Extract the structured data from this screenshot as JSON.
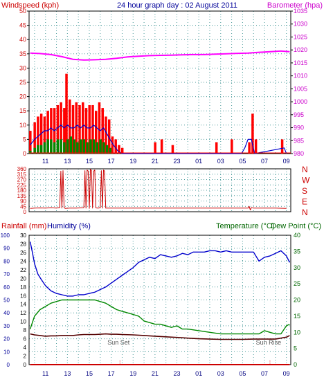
{
  "colors": {
    "background": "#ffffff",
    "plot_bg": "#ffffff",
    "axis": "#000000",
    "grid": "#4a9a9a",
    "wind_red": "#ff0000",
    "wind_blue": "#0000cc",
    "wind_green": "#008800",
    "barometer": "#ff00ff",
    "direction": "#cc0000",
    "humidity": "#0000cc",
    "temperature": "#008800",
    "dewpoint": "#550000",
    "rain": "#cc0000",
    "title_blue": "#000099",
    "humidity_label": "#000099",
    "temp_label": "#006600",
    "wind_label": "#cc0000",
    "baro_label": "#cc00cc",
    "rain_label": "#cc0000",
    "dir_label": "#cc0000"
  },
  "chart_data": [
    {
      "type": "line",
      "panel": "wind-barometer",
      "title": "24 hour graph day : 02 August 2011",
      "left_axis_label": "Windspeed (kph)",
      "right_axis_label": "Barometer (hpa)",
      "x_tick_labels": [
        "11",
        "13",
        "15",
        "17",
        "19",
        "21",
        "23",
        "01",
        "03",
        "05",
        "07",
        "09"
      ],
      "x_hours": [
        11,
        13,
        15,
        17,
        19,
        21,
        23,
        25,
        27,
        29,
        31,
        33
      ],
      "x_range_hours": [
        9.5,
        33.4
      ],
      "left_ticks": [
        0,
        5,
        10,
        15,
        20,
        25,
        30,
        35,
        40,
        45,
        50
      ],
      "left_range": [
        0,
        50
      ],
      "right_ticks": [
        980,
        985,
        990,
        995,
        1000,
        1005,
        1010,
        1015,
        1020,
        1025,
        1030,
        1035
      ],
      "right_range": [
        980,
        1035
      ],
      "grid": true,
      "series": [
        {
          "style": "gust",
          "x": [
            9.6,
            10.0,
            10.3,
            10.6,
            10.9,
            11.2,
            11.5,
            11.8,
            12.1,
            12.4,
            12.7,
            12.9,
            13.2,
            13.5,
            13.8,
            14.1,
            14.4,
            14.7,
            15.0,
            15.3,
            15.6,
            15.9,
            16.2,
            16.5,
            16.8,
            17.1,
            17.4,
            17.7,
            18.0,
            18.2,
            18.6,
            20.8,
            21.0,
            21.6,
            22.4,
            22.6,
            23.2,
            26.4,
            26.6,
            28.0,
            28.3,
            29.6,
            29.9,
            30.2,
            30.6,
            32.6,
            33.0
          ],
          "values": [
            8,
            11,
            13,
            14,
            13,
            15,
            16,
            16,
            17,
            18,
            16,
            28,
            19,
            17,
            18,
            17,
            18,
            16,
            17,
            17,
            15,
            18,
            16,
            13,
            12,
            6,
            5,
            3,
            2,
            0,
            0,
            0,
            4,
            5,
            0,
            3,
            0,
            0,
            4,
            5,
            0,
            4,
            14,
            5,
            0,
            5,
            0
          ]
        },
        {
          "style": "average",
          "x": [
            9.6,
            10.0,
            10.3,
            10.6,
            10.9,
            11.2,
            11.5,
            11.8,
            12.1,
            12.4,
            12.7,
            13.0,
            13.3,
            13.6,
            13.9,
            14.2,
            14.5,
            14.8,
            15.1,
            15.4,
            15.7,
            16.0,
            16.3,
            16.6,
            16.9,
            17.2,
            17.6,
            18.0,
            28.9,
            29.2,
            29.5,
            29.8,
            30.1,
            32.8,
            33.0
          ],
          "values": [
            3,
            5,
            6,
            7,
            8,
            8,
            9,
            8,
            9,
            10,
            9,
            10,
            9,
            9,
            10,
            9,
            10,
            9,
            9,
            10,
            9,
            8,
            9,
            7,
            5,
            3,
            1,
            0,
            0,
            2,
            5,
            5,
            0,
            2,
            0
          ]
        },
        {
          "style": "lull",
          "x": [
            9.6,
            10.0,
            10.3,
            10.6,
            10.9,
            11.2,
            11.5,
            11.8,
            12.1,
            12.4,
            12.7,
            13.0,
            13.3,
            13.6,
            13.9,
            14.2,
            14.5,
            14.8,
            15.1,
            15.4,
            15.7,
            16.0,
            16.3,
            16.6,
            16.9,
            17.2
          ],
          "values": [
            1,
            2,
            3,
            3,
            4,
            5,
            5,
            4,
            5,
            5,
            4,
            5,
            6,
            5,
            4,
            5,
            5,
            4,
            5,
            5,
            4,
            5,
            4,
            3,
            2,
            0
          ]
        },
        {
          "style": "barometer",
          "axis": "right",
          "x": [
            9.6,
            10.5,
            11.5,
            12.5,
            13.5,
            14.5,
            15.5,
            16.5,
            17.5,
            18.5,
            19.5,
            20.5,
            21.5,
            22.5,
            23.5,
            24.5,
            25.5,
            26.5,
            27.5,
            28.5,
            29.5,
            30.5,
            31.5,
            32.5,
            33.3
          ],
          "values": [
            1018.8,
            1018.6,
            1018.2,
            1017.4,
            1016.4,
            1016.1,
            1016.2,
            1016.4,
            1016.8,
            1017.3,
            1017.6,
            1017.8,
            1017.9,
            1018.0,
            1018.1,
            1018.2,
            1018.2,
            1018.4,
            1018.5,
            1018.7,
            1018.8,
            1019.1,
            1019.3,
            1019.6,
            1019.3
          ]
        }
      ]
    },
    {
      "type": "line",
      "panel": "wind-direction",
      "left_ticks": [
        0,
        45,
        90,
        135,
        180,
        225,
        270,
        315,
        360
      ],
      "left_tick_labels": [
        "0",
        "45",
        "90",
        "135",
        "180",
        "225",
        "270",
        "315",
        "360"
      ],
      "left_range": [
        0,
        360
      ],
      "right_labels": [
        "N",
        "W",
        "S",
        "E",
        "N"
      ],
      "right_label_values": [
        360,
        270,
        180,
        90,
        0
      ],
      "x_range_hours": [
        9.5,
        33.4
      ],
      "grid": true,
      "series": [
        {
          "style": "direction",
          "x": [
            9.6,
            10.0,
            10.5,
            11.0,
            11.5,
            12.0,
            12.3,
            12.4,
            12.5,
            12.6,
            12.7,
            12.8,
            13.2,
            13.8,
            14.5,
            14.6,
            14.7,
            14.8,
            14.9,
            15.0,
            15.1,
            15.2,
            15.3,
            15.4,
            15.5,
            15.6,
            15.8,
            16.0,
            16.1,
            16.2,
            16.3,
            16.4,
            16.5,
            18.0,
            20.0,
            22.0,
            24.0,
            26.0,
            28.0,
            29.5,
            29.6,
            29.7,
            29.8,
            30.0,
            32.0,
            33.0
          ],
          "values": [
            28,
            30,
            32,
            30,
            33,
            31,
            35,
            340,
            30,
            345,
            35,
            28,
            30,
            31,
            33,
            345,
            30,
            350,
            340,
            28,
            355,
            345,
            30,
            340,
            350,
            32,
            30,
            33,
            345,
            30,
            350,
            340,
            30,
            30,
            30,
            30,
            30,
            30,
            30,
            30,
            45,
            15,
            35,
            30,
            30,
            28
          ]
        }
      ]
    },
    {
      "type": "line",
      "panel": "temperature-humidity",
      "left_axis_label_1": "Rainfall (mm)",
      "left_axis_label_2": "Humidity (%)",
      "right_axis_label_1": "Temperature (°C)",
      "right_axis_label_2": "Dew Point (°C)",
      "humidity_ticks": [
        0,
        10,
        20,
        30,
        40,
        50,
        60,
        70,
        80,
        90,
        100
      ],
      "humidity_range": [
        0,
        100
      ],
      "rain_ticks": [
        0,
        2,
        4,
        6,
        8,
        10,
        12,
        14,
        16,
        18,
        20,
        22,
        24,
        26,
        28,
        30
      ],
      "rain_range": [
        0,
        30
      ],
      "temp_ticks": [
        0,
        5,
        10,
        15,
        20,
        25,
        30,
        35,
        40
      ],
      "temp_range": [
        0,
        40
      ],
      "x_tick_labels": [
        "11",
        "13",
        "15",
        "17",
        "19",
        "21",
        "23",
        "01",
        "03",
        "05",
        "07",
        "09"
      ],
      "x_hours": [
        11,
        13,
        15,
        17,
        19,
        21,
        23,
        25,
        27,
        29,
        31,
        33
      ],
      "x_range_hours": [
        9.5,
        33.4
      ],
      "annotations": [
        {
          "text": "Sun Set",
          "x_hour": 17.8
        },
        {
          "text": "Sun Rise",
          "x_hour": 31.5
        }
      ],
      "grid": true,
      "series": [
        {
          "style": "humidity",
          "axis": "humidity",
          "x": [
            9.6,
            9.8,
            10.0,
            10.3,
            10.6,
            11.0,
            11.5,
            12.0,
            12.5,
            13.0,
            13.5,
            14.0,
            14.5,
            15.0,
            15.5,
            16.0,
            16.5,
            17.0,
            17.5,
            18.0,
            18.5,
            19.0,
            19.5,
            20.0,
            20.5,
            21.0,
            21.5,
            22.0,
            22.5,
            23.0,
            23.5,
            24.0,
            24.5,
            25.0,
            25.5,
            26.0,
            26.5,
            27.0,
            27.5,
            28.0,
            28.5,
            29.0,
            29.5,
            30.0,
            30.5,
            31.0,
            31.5,
            32.0,
            32.5,
            33.0,
            33.3
          ],
          "values": [
            95,
            87,
            78,
            70,
            66,
            61,
            57,
            55,
            54,
            53,
            53,
            54,
            54,
            55,
            56,
            58,
            60,
            63,
            66,
            69,
            72,
            75,
            79,
            81,
            83,
            82,
            85,
            84,
            83,
            84,
            86,
            85,
            87,
            87,
            87,
            88,
            88,
            87,
            88,
            87,
            87,
            87,
            87,
            87,
            80,
            83,
            84,
            86,
            88,
            84,
            79
          ]
        },
        {
          "style": "temperature",
          "axis": "temp",
          "x": [
            9.6,
            10.0,
            10.5,
            11.0,
            11.5,
            12.0,
            12.5,
            13.0,
            13.5,
            14.0,
            14.5,
            15.0,
            15.5,
            16.0,
            16.5,
            17.0,
            17.5,
            18.0,
            18.5,
            19.0,
            19.5,
            20.0,
            20.5,
            21.0,
            21.5,
            22.0,
            22.5,
            23.0,
            23.5,
            24.0,
            25.0,
            26.0,
            27.0,
            28.0,
            29.0,
            30.0,
            30.5,
            31.0,
            31.5,
            32.0,
            32.5,
            33.0,
            33.3
          ],
          "values": [
            11,
            15,
            17,
            18,
            19,
            19.5,
            20,
            20,
            20,
            20,
            20,
            20,
            20,
            19.5,
            19,
            18,
            17,
            16.5,
            16,
            15.5,
            15,
            13.5,
            13,
            12.5,
            12.5,
            12,
            11.5,
            12,
            11,
            11,
            10.5,
            10,
            9.5,
            9.5,
            9.5,
            9.5,
            9.5,
            10.5,
            10,
            9.5,
            9.5,
            12,
            12.5
          ]
        },
        {
          "style": "dewpoint",
          "axis": "temp",
          "x": [
            9.6,
            10.0,
            10.5,
            11.0,
            11.5,
            12.0,
            12.5,
            13.0,
            13.5,
            14.0,
            14.5,
            15.0,
            15.5,
            16.0,
            16.5,
            17.0,
            17.5,
            18.0,
            19.0,
            20.0,
            21.0,
            22.0,
            23.0,
            24.0,
            25.0,
            26.0,
            27.0,
            28.0,
            29.0,
            30.0,
            31.0,
            32.0,
            33.0,
            33.3
          ],
          "values": [
            9.5,
            9.2,
            9.0,
            8.8,
            8.9,
            8.9,
            9.0,
            9.0,
            9.0,
            9.2,
            9.3,
            9.3,
            9.3,
            9.4,
            9.5,
            9.4,
            9.4,
            9.3,
            9.2,
            9.0,
            8.8,
            8.6,
            8.4,
            8.2,
            8.0,
            7.9,
            7.8,
            7.8,
            7.8,
            7.9,
            7.9,
            7.9,
            8.5,
            9.0
          ]
        },
        {
          "style": "rainfall",
          "axis": "rain",
          "x": [
            9.6,
            33.3
          ],
          "values": [
            0,
            0
          ]
        }
      ]
    }
  ]
}
